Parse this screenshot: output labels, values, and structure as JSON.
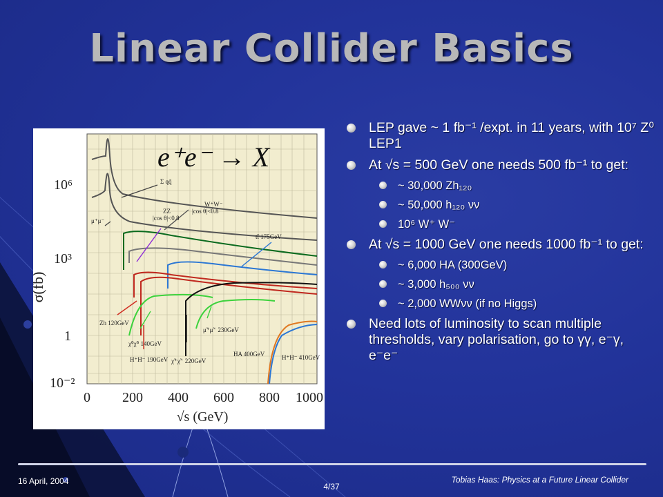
{
  "slide": {
    "title": "Linear Collider Basics",
    "colors": {
      "background": "#1f2f8c",
      "title": "#b8b8b8",
      "text": "#ffffff"
    }
  },
  "figure": {
    "formula": "e⁺e⁻ → X",
    "y_label": "σ(fb)",
    "x_label": "√s  (GeV)",
    "x_ticks": [
      "0",
      "200",
      "400",
      "600",
      "800",
      "1000"
    ],
    "y_ticks": [
      "10⁶",
      "10³",
      "1",
      "10⁻²"
    ],
    "annotations": [
      "Σ qq̄",
      "μ⁺μ⁻",
      "ZZ",
      "|cos θ|<0.8",
      "W⁺W⁻",
      "|cos θ|<0.8",
      "tt̄ 175GeV",
      "Zh 120GeV",
      "H⁺H⁻ 190GeV",
      "χ̃⁰χ̃⁰ 140GeV",
      "χ̃⁺χ̃⁻ 220GeV",
      "μ̃⁺μ̃⁻ 230GeV",
      "HA 400GeV",
      "H⁺H⁻ 410GeV"
    ]
  },
  "bullets": [
    {
      "level": 1,
      "text": "LEP gave ~ 1 fb⁻¹ /expt. in 11 years, with 10⁷ Z⁰ LEP1"
    },
    {
      "level": 1,
      "text": "At √s = 500 GeV one needs 500 fb⁻¹ to get:"
    },
    {
      "level": 2,
      "text": "~ 30,000 Zh₁₂₀"
    },
    {
      "level": 2,
      "text": "~ 50,000 h₁₂₀ νν"
    },
    {
      "level": 2,
      "text": "10⁶ W⁺ W⁻"
    },
    {
      "level": 1,
      "text": "At √s = 1000 GeV one needs 1000 fb⁻¹ to get:"
    },
    {
      "level": 2,
      "text": "~ 6,000 HA (300GeV)"
    },
    {
      "level": 2,
      "text": "~ 3,000 h₅₀₀ νν"
    },
    {
      "level": 2,
      "text": "~ 2,000 WWνν (if no Higgs)"
    },
    {
      "level": 1,
      "text": "Need lots of luminosity to scan multiple thresholds, vary polarisation, go to γγ, e⁻γ, e⁻e⁻"
    }
  ],
  "footer": {
    "date": "16 April, 2004",
    "page": "4/37",
    "author": "Tobias Haas: Physics at a Future Linear Collider"
  }
}
